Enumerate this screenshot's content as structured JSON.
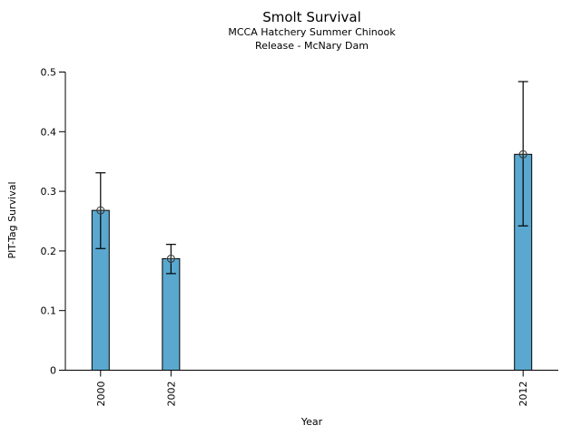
{
  "figure": {
    "background": "#ffffff",
    "text_color": "#000000"
  },
  "chart_data": {
    "type": "bar",
    "title": "Smolt Survival",
    "subtitle": [
      "MCCA Hatchery Summer Chinook",
      "Release - McNary Dam"
    ],
    "xlabel": "Year",
    "ylabel": "PIT-Tag Survival",
    "categories": [
      "2000",
      "2002",
      "2012"
    ],
    "x": [
      2000,
      2002,
      2012
    ],
    "values": [
      0.268,
      0.187,
      0.362
    ],
    "error_low": [
      0.204,
      0.162,
      0.242
    ],
    "error_high": [
      0.331,
      0.211,
      0.484
    ],
    "xlim": [
      1999,
      2013
    ],
    "ylim": [
      0,
      0.5
    ],
    "yticks": [
      0,
      0.1,
      0.2,
      0.3,
      0.4,
      0.5
    ],
    "ytick_labels": [
      "0",
      "0.1",
      "0.2",
      "0.3",
      "0.4",
      "0.5"
    ],
    "grid": false,
    "legend": false,
    "bar_color": "#5AA8D0",
    "bar_edge_color": "#000000",
    "error_bar_color": "#000000",
    "marker": "circle-plus",
    "marker_color": "#333333",
    "axis_color": "#000000"
  }
}
